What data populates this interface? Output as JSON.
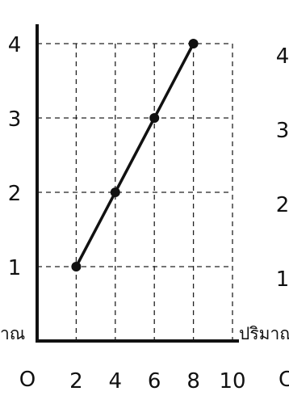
{
  "chart_data": {
    "type": "line",
    "title": "",
    "xlabel": "ปริมาณ",
    "ylabel": "",
    "left_label_fragment": "าณ",
    "right_fragments": [
      "4",
      "3",
      "2",
      "1"
    ],
    "right_origin_fragment": "C",
    "origin_label": "O",
    "x_ticks": [
      "2",
      "4",
      "6",
      "8",
      "10"
    ],
    "y_ticks": [
      "1",
      "2",
      "3",
      "4"
    ],
    "xlim": [
      0,
      10
    ],
    "ylim": [
      0,
      4
    ],
    "grid": true,
    "series": [
      {
        "x": [
          2,
          4,
          6,
          8
        ],
        "y": [
          1,
          2,
          3,
          4
        ]
      }
    ]
  }
}
